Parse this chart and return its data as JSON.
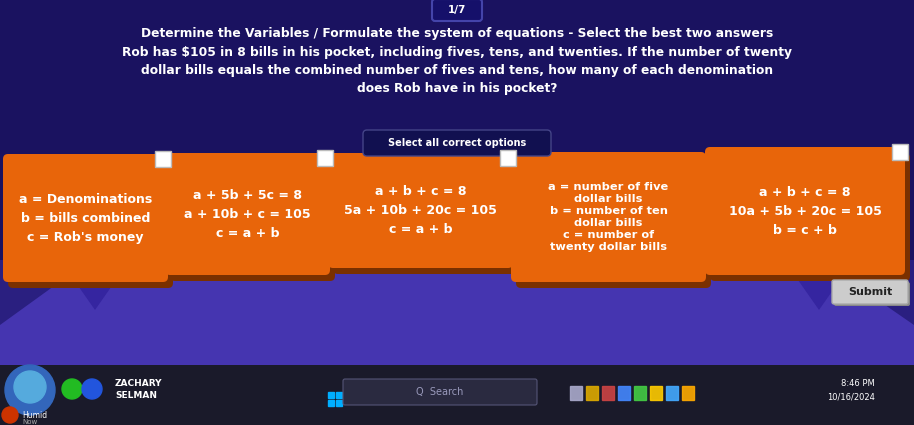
{
  "title_top": "1/7",
  "title_line1": "Determine the Variables / Formulate the system of equations - Select the best two answers",
  "title_line2": "Rob has $105 in 8 bills in his pocket, including fives, tens, and twenties. If the number of twenty",
  "title_line3": "dollar bills equals the combined number of fives and tens, how many of each denomination",
  "title_line4": "does Rob have in his pocket?",
  "select_label": "Select all correct options",
  "bg_color_top": "#1e1560",
  "bg_color_bottom": "#4a3aaa",
  "card_color": "#e8650a",
  "card_shadow": "#7a3000",
  "cards": [
    {
      "lines": [
        "a = Denominations",
        "b = bills combined",
        "c = Rob's money"
      ],
      "has_checkbox": true
    },
    {
      "lines": [
        "a + 5b + 5c = 8",
        "a + 10b + c = 105",
        "c = a + b"
      ],
      "has_checkbox": true
    },
    {
      "lines": [
        "a + b + c = 8",
        "5a + 10b + 20c = 105",
        "c = a + b"
      ],
      "has_checkbox": true
    },
    {
      "lines": [
        "a = number of five",
        "dollar bills",
        "b = number of ten",
        "dollar bills",
        "c = number of",
        "twenty dollar bills"
      ],
      "has_checkbox": false
    },
    {
      "lines": [
        "a + b + c = 8",
        "10a + 5b + 20c = 105",
        "b = c + b"
      ],
      "has_checkbox": true
    }
  ],
  "submit_label": "Submit",
  "taskbar_color": "#1a1a2a",
  "footer_name": "ZACHARY\nSELMAN",
  "footer_time": "8:46 PM\n10/16/2024"
}
